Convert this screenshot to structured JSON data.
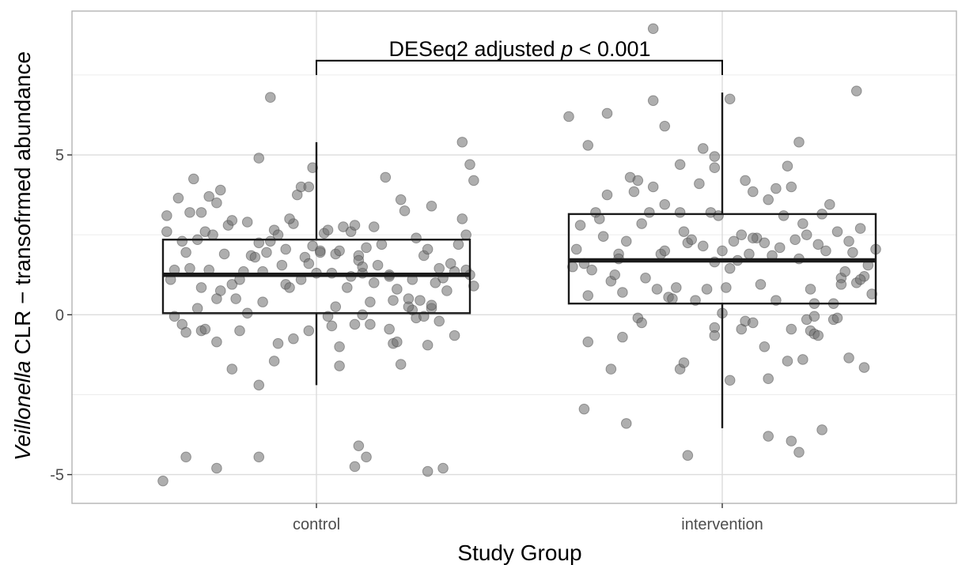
{
  "chart_data": {
    "type": "box",
    "xlabel": "Study Group",
    "ylabel_italic": "Veillonella",
    "ylabel_rest": " CLR − transofrmed abundance",
    "categories": [
      "control",
      "intervention"
    ],
    "ylim": [
      -5.9,
      9.5
    ],
    "yticks": [
      -5,
      0,
      5
    ],
    "ytick_labels": [
      "-5",
      "0",
      "5"
    ],
    "grid": true,
    "boxes": [
      {
        "category": "control",
        "q1": 0.05,
        "median": 1.25,
        "q3": 2.35,
        "whisker_low": -2.2,
        "whisker_high": 5.4
      },
      {
        "category": "intervention",
        "q1": 0.35,
        "median": 1.7,
        "q3": 3.15,
        "whisker_low": -3.55,
        "whisker_high": 6.95
      }
    ],
    "annotation": {
      "text_before": "DESeq2 adjusted ",
      "text_italic": "p",
      "text_after": " < 0.001",
      "bracket_y": 7.95,
      "bracket_drop": 7.5
    },
    "point_color": "#6b6b6b",
    "points": {
      "control": [
        [
          -0.4,
          -5.2
        ],
        [
          -0.34,
          -4.45
        ],
        [
          -0.26,
          -4.8
        ],
        [
          -0.15,
          -4.45
        ],
        [
          0.1,
          -4.75
        ],
        [
          0.11,
          -4.1
        ],
        [
          0.13,
          -4.45
        ],
        [
          0.29,
          -4.9
        ],
        [
          0.33,
          -4.8
        ],
        [
          -0.37,
          -0.05
        ],
        [
          -0.35,
          -0.3
        ],
        [
          -0.34,
          -0.55
        ],
        [
          -0.31,
          0.2
        ],
        [
          -0.3,
          -0.5
        ],
        [
          -0.29,
          -0.45
        ],
        [
          -0.25,
          0.75
        ],
        [
          -0.26,
          -0.85
        ],
        [
          -0.22,
          -1.7
        ],
        [
          -0.2,
          -0.5
        ],
        [
          -0.18,
          0.05
        ],
        [
          -0.14,
          0.4
        ],
        [
          -0.15,
          -2.2
        ],
        [
          -0.11,
          -1.45
        ],
        [
          -0.1,
          -0.9
        ],
        [
          -0.06,
          -0.75
        ],
        [
          -0.02,
          -0.5
        ],
        [
          0.03,
          -0.05
        ],
        [
          0.04,
          -0.35
        ],
        [
          0.06,
          -1.0
        ],
        [
          0.06,
          -1.6
        ],
        [
          0.1,
          -0.3
        ],
        [
          0.12,
          0.0
        ],
        [
          0.14,
          -0.3
        ],
        [
          0.19,
          -0.45
        ],
        [
          0.2,
          -0.9
        ],
        [
          0.21,
          -0.85
        ],
        [
          0.22,
          -1.55
        ],
        [
          0.25,
          0.15
        ],
        [
          0.26,
          -0.1
        ],
        [
          0.28,
          -0.05
        ],
        [
          0.29,
          -0.95
        ],
        [
          0.3,
          0.2
        ],
        [
          0.32,
          -0.2
        ],
        [
          0.36,
          -0.65
        ],
        [
          -0.39,
          2.6
        ],
        [
          -0.39,
          3.1
        ],
        [
          -0.38,
          1.1
        ],
        [
          -0.37,
          1.4
        ],
        [
          -0.36,
          3.65
        ],
        [
          -0.35,
          2.3
        ],
        [
          -0.34,
          1.95
        ],
        [
          -0.33,
          1.45
        ],
        [
          -0.33,
          3.2
        ],
        [
          -0.32,
          4.25
        ],
        [
          -0.31,
          2.35
        ],
        [
          -0.3,
          0.85
        ],
        [
          -0.3,
          3.2
        ],
        [
          -0.29,
          2.6
        ],
        [
          -0.28,
          3.7
        ],
        [
          -0.28,
          1.4
        ],
        [
          -0.27,
          2.5
        ],
        [
          -0.26,
          3.5
        ],
        [
          -0.26,
          0.5
        ],
        [
          -0.25,
          3.9
        ],
        [
          -0.24,
          1.9
        ],
        [
          -0.23,
          2.8
        ],
        [
          -0.22,
          0.95
        ],
        [
          -0.22,
          2.95
        ],
        [
          -0.21,
          0.5
        ],
        [
          -0.2,
          1.1
        ],
        [
          -0.19,
          1.35
        ],
        [
          -0.18,
          2.9
        ],
        [
          -0.17,
          1.85
        ],
        [
          -0.16,
          1.8
        ],
        [
          -0.15,
          4.9
        ],
        [
          -0.15,
          2.25
        ],
        [
          -0.14,
          1.35
        ],
        [
          -0.13,
          1.95
        ],
        [
          -0.12,
          2.3
        ],
        [
          -0.11,
          2.65
        ],
        [
          -0.1,
          2.5
        ],
        [
          -0.09,
          1.55
        ],
        [
          -0.08,
          2.05
        ],
        [
          -0.08,
          0.95
        ],
        [
          -0.07,
          0.85
        ],
        [
          -0.06,
          2.85
        ],
        [
          -0.05,
          3.75
        ],
        [
          -0.04,
          4.0
        ],
        [
          -0.04,
          1.1
        ],
        [
          -0.03,
          1.8
        ],
        [
          -0.02,
          1.6
        ],
        [
          -0.01,
          2.15
        ],
        [
          0.0,
          1.3
        ],
        [
          -0.01,
          4.6
        ],
        [
          -0.02,
          4.0
        ],
        [
          0.01,
          2.0
        ],
        [
          0.01,
          1.95
        ],
        [
          0.02,
          2.55
        ],
        [
          0.03,
          2.65
        ],
        [
          0.04,
          1.3
        ],
        [
          0.05,
          0.25
        ],
        [
          0.05,
          1.9
        ],
        [
          0.06,
          2.0
        ],
        [
          0.07,
          2.75
        ],
        [
          0.08,
          0.85
        ],
        [
          0.09,
          2.6
        ],
        [
          0.1,
          2.8
        ],
        [
          0.11,
          1.85
        ],
        [
          0.11,
          1.7
        ],
        [
          0.12,
          1.3
        ],
        [
          0.12,
          1.5
        ],
        [
          0.13,
          2.1
        ],
        [
          0.14,
          0.4
        ],
        [
          0.15,
          1.0
        ],
        [
          0.15,
          2.75
        ],
        [
          0.16,
          1.55
        ],
        [
          0.17,
          2.2
        ],
        [
          0.18,
          4.3
        ],
        [
          0.19,
          1.25
        ],
        [
          0.19,
          1.2
        ],
        [
          0.2,
          0.45
        ],
        [
          0.21,
          0.8
        ],
        [
          0.22,
          3.6
        ],
        [
          0.23,
          3.25
        ],
        [
          0.24,
          0.25
        ],
        [
          0.24,
          0.5
        ],
        [
          0.26,
          2.4
        ],
        [
          0.27,
          0.45
        ],
        [
          0.28,
          1.85
        ],
        [
          0.29,
          2.05
        ],
        [
          0.3,
          0.3
        ],
        [
          0.3,
          3.4
        ],
        [
          0.31,
          1.0
        ],
        [
          0.32,
          1.45
        ],
        [
          0.33,
          1.15
        ],
        [
          0.34,
          0.75
        ],
        [
          0.35,
          1.6
        ],
        [
          0.36,
          1.35
        ],
        [
          0.37,
          2.2
        ],
        [
          0.38,
          5.4
        ],
        [
          0.38,
          3.0
        ],
        [
          0.39,
          2.5
        ],
        [
          0.4,
          4.7
        ],
        [
          0.41,
          4.2
        ],
        [
          0.41,
          0.9
        ],
        [
          0.4,
          1.25
        ],
        [
          0.39,
          1.4
        ],
        [
          -0.12,
          6.8
        ],
        [
          -0.07,
          3.0
        ],
        [
          0.09,
          1.2
        ],
        [
          0.25,
          1.1
        ]
      ],
      "intervention": [
        [
          -0.35,
          -0.85
        ],
        [
          -0.36,
          -2.95
        ],
        [
          -0.29,
          -1.7
        ],
        [
          -0.26,
          -0.7
        ],
        [
          -0.25,
          -3.4
        ],
        [
          -0.22,
          -0.1
        ],
        [
          -0.21,
          -0.25
        ],
        [
          -0.11,
          -1.7
        ],
        [
          -0.1,
          -1.5
        ],
        [
          -0.09,
          -4.4
        ],
        [
          -0.02,
          -0.4
        ],
        [
          -0.02,
          -0.65
        ],
        [
          0.0,
          0.05
        ],
        [
          0.02,
          -2.05
        ],
        [
          0.05,
          -0.45
        ],
        [
          0.06,
          -0.2
        ],
        [
          0.08,
          -0.25
        ],
        [
          0.11,
          -1.0
        ],
        [
          0.12,
          -2.0
        ],
        [
          0.12,
          -3.8
        ],
        [
          0.18,
          -3.95
        ],
        [
          0.2,
          -4.3
        ],
        [
          0.21,
          -1.4
        ],
        [
          0.23,
          -0.5
        ],
        [
          0.24,
          -0.6
        ],
        [
          0.25,
          -0.65
        ],
        [
          0.26,
          -3.6
        ],
        [
          0.33,
          -1.35
        ],
        [
          0.37,
          -1.65
        ],
        [
          0.17,
          -1.45
        ],
        [
          0.18,
          -0.45
        ],
        [
          0.22,
          -0.15
        ],
        [
          0.24,
          -0.05
        ],
        [
          0.29,
          -0.15
        ],
        [
          0.3,
          -0.1
        ],
        [
          -0.4,
          6.2
        ],
        [
          -0.35,
          5.3
        ],
        [
          -0.3,
          6.3
        ],
        [
          -0.18,
          6.7
        ],
        [
          -0.15,
          5.9
        ],
        [
          -0.05,
          5.2
        ],
        [
          -0.02,
          4.95
        ],
        [
          -0.02,
          4.6
        ],
        [
          0.2,
          5.4
        ],
        [
          0.35,
          7.0
        ],
        [
          0.02,
          6.75
        ],
        [
          -0.18,
          8.95
        ],
        [
          -0.39,
          1.5
        ],
        [
          -0.38,
          2.05
        ],
        [
          -0.37,
          2.8
        ],
        [
          -0.36,
          1.6
        ],
        [
          -0.35,
          0.6
        ],
        [
          -0.34,
          1.4
        ],
        [
          -0.33,
          3.2
        ],
        [
          -0.32,
          3.0
        ],
        [
          -0.31,
          2.45
        ],
        [
          -0.3,
          3.75
        ],
        [
          -0.29,
          1.05
        ],
        [
          -0.28,
          1.25
        ],
        [
          -0.27,
          1.9
        ],
        [
          -0.26,
          0.7
        ],
        [
          -0.25,
          2.3
        ],
        [
          -0.24,
          4.3
        ],
        [
          -0.23,
          3.85
        ],
        [
          -0.22,
          4.2
        ],
        [
          -0.21,
          2.85
        ],
        [
          -0.2,
          1.15
        ],
        [
          -0.19,
          3.2
        ],
        [
          -0.18,
          4.0
        ],
        [
          -0.17,
          0.8
        ],
        [
          -0.16,
          1.9
        ],
        [
          -0.15,
          2.0
        ],
        [
          -0.14,
          0.55
        ],
        [
          -0.13,
          0.5
        ],
        [
          -0.12,
          0.85
        ],
        [
          -0.11,
          3.2
        ],
        [
          -0.11,
          4.7
        ],
        [
          -0.1,
          2.6
        ],
        [
          -0.09,
          2.25
        ],
        [
          -0.08,
          2.35
        ],
        [
          -0.07,
          0.45
        ],
        [
          -0.06,
          4.1
        ],
        [
          -0.05,
          2.15
        ],
        [
          -0.04,
          0.8
        ],
        [
          -0.03,
          3.2
        ],
        [
          -0.02,
          1.65
        ],
        [
          -0.01,
          3.1
        ],
        [
          0.0,
          2.0
        ],
        [
          0.01,
          0.85
        ],
        [
          0.02,
          1.45
        ],
        [
          0.03,
          2.3
        ],
        [
          0.04,
          1.7
        ],
        [
          0.05,
          2.5
        ],
        [
          0.06,
          4.2
        ],
        [
          0.07,
          1.9
        ],
        [
          0.08,
          3.85
        ],
        [
          0.09,
          2.4
        ],
        [
          0.1,
          0.95
        ],
        [
          0.11,
          2.25
        ],
        [
          0.12,
          3.6
        ],
        [
          0.13,
          1.85
        ],
        [
          0.14,
          0.45
        ],
        [
          0.15,
          2.1
        ],
        [
          0.16,
          3.1
        ],
        [
          0.17,
          4.65
        ],
        [
          0.18,
          4.0
        ],
        [
          0.19,
          2.35
        ],
        [
          0.2,
          1.75
        ],
        [
          0.21,
          2.85
        ],
        [
          0.22,
          2.5
        ],
        [
          0.23,
          0.8
        ],
        [
          0.24,
          0.35
        ],
        [
          0.25,
          2.2
        ],
        [
          0.26,
          3.15
        ],
        [
          0.27,
          2.0
        ],
        [
          0.28,
          3.45
        ],
        [
          0.29,
          0.35
        ],
        [
          0.3,
          2.6
        ],
        [
          0.31,
          1.15
        ],
        [
          0.32,
          1.35
        ],
        [
          0.33,
          2.3
        ],
        [
          0.34,
          1.95
        ],
        [
          0.35,
          1.0
        ],
        [
          0.36,
          2.7
        ],
        [
          0.37,
          1.2
        ],
        [
          0.38,
          1.55
        ],
        [
          0.39,
          0.65
        ],
        [
          0.4,
          2.05
        ],
        [
          0.36,
          1.1
        ],
        [
          0.31,
          0.95
        ],
        [
          -0.27,
          1.75
        ],
        [
          -0.15,
          3.45
        ],
        [
          0.08,
          2.4
        ],
        [
          0.14,
          3.95
        ]
      ]
    }
  }
}
